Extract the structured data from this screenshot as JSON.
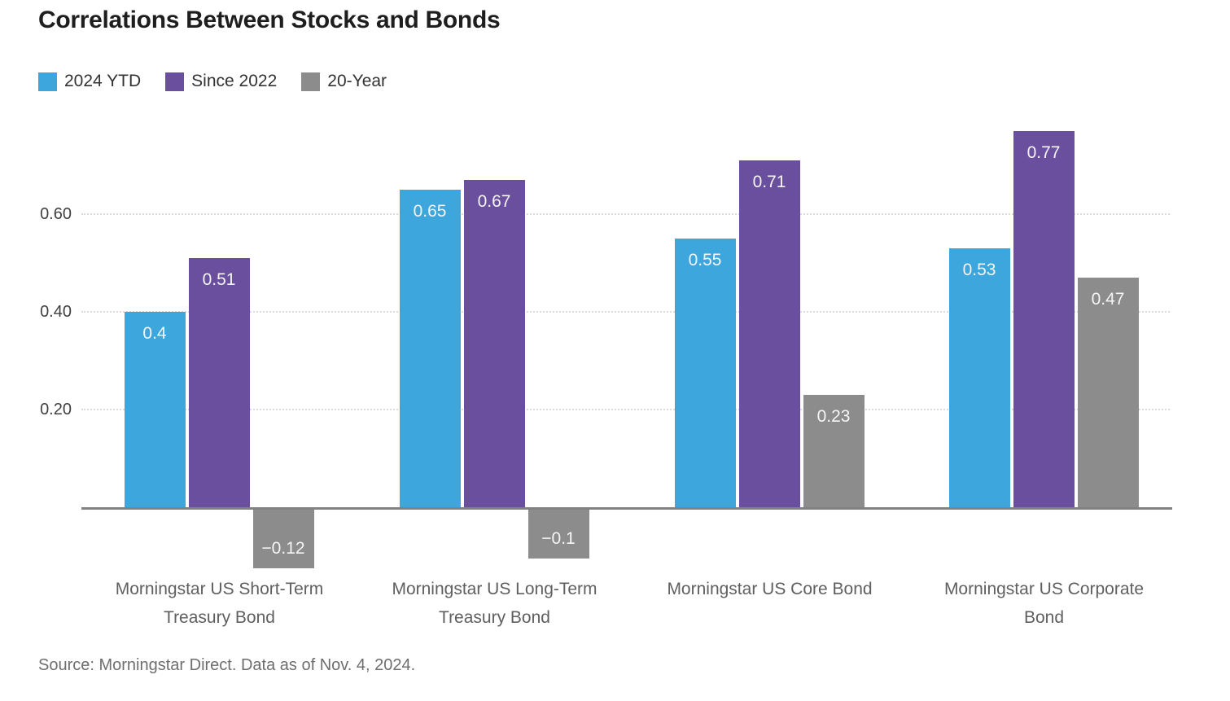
{
  "chart": {
    "title": "Correlations Between Stocks and Bonds",
    "source": "Source: Morningstar Direct. Data as of Nov. 4, 2024."
  },
  "chart_data": {
    "type": "bar",
    "title": "Correlations Between Stocks and Bonds",
    "categories": [
      "Morningstar US Short-Term\nTreasury Bond",
      "Morningstar US Long-Term\nTreasury Bond",
      "Morningstar US Core Bond",
      "Morningstar US Corporate\nBond"
    ],
    "series": [
      {
        "name": "2024 YTD",
        "color": "#3DA6DC",
        "values": [
          0.4,
          0.65,
          0.55,
          0.53
        ],
        "labels": [
          "0.4",
          "0.65",
          "0.55",
          "0.53"
        ]
      },
      {
        "name": "Since 2022",
        "color": "#6A4F9E",
        "values": [
          0.51,
          0.67,
          0.71,
          0.77
        ],
        "labels": [
          "0.51",
          "0.67",
          "0.71",
          "0.77"
        ]
      },
      {
        "name": "20-Year",
        "color": "#8C8C8C",
        "values": [
          -0.12,
          -0.1,
          0.23,
          0.47
        ],
        "labels": [
          "−0.12",
          "−0.1",
          "0.23",
          "0.47"
        ]
      }
    ],
    "y_ticks": [
      {
        "value": 0.2,
        "label": "0.20"
      },
      {
        "value": 0.4,
        "label": "0.40"
      },
      {
        "value": 0.6,
        "label": "0.60"
      }
    ],
    "ylim": [
      -0.2,
      0.8
    ],
    "xlabel": "",
    "ylabel": "",
    "grid": "horizontal-dotted",
    "legend_position": "top-left",
    "value_labels": "inside-bar",
    "source": "Source: Morningstar Direct. Data as of Nov. 4, 2024."
  }
}
